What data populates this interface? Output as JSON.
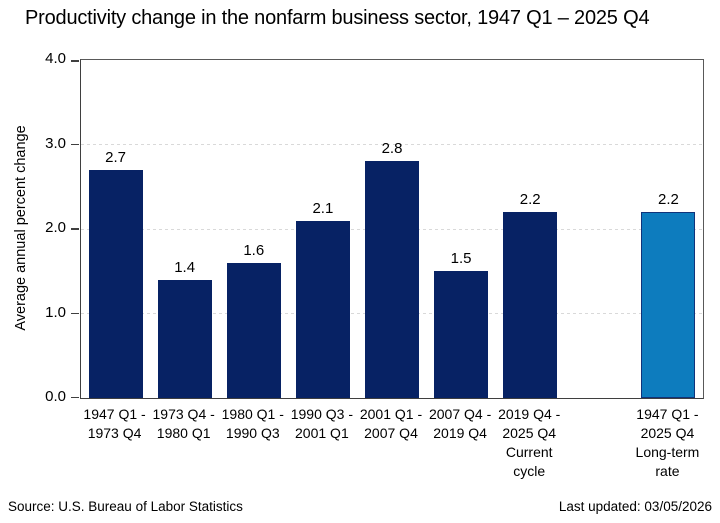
{
  "chart_data": {
    "type": "bar",
    "title": "Productivity change in the nonfarm business sector, 1947 Q1 – 2025 Q4",
    "ylabel": "Average annual percent change",
    "xlabel": "",
    "ylim": [
      0,
      4
    ],
    "ytick_values": [
      0,
      1,
      2,
      3,
      4
    ],
    "ytick_labels": [
      "0.0",
      "1.0",
      "2.0",
      "3.0",
      "4.0"
    ],
    "grid": "horizontal dashed gridlines at interior ticks",
    "legend_position": "none",
    "axis_color": "#3f3f3f",
    "border_color": "#595959",
    "gridline_color": "#d9d9d9",
    "bars": [
      {
        "category_lines": [
          "1947 Q1 -",
          "1973 Q4"
        ],
        "value": 2.7,
        "value_label": "2.7",
        "color": "#072264"
      },
      {
        "category_lines": [
          "1973 Q4 -",
          "1980 Q1"
        ],
        "value": 1.4,
        "value_label": "1.4",
        "color": "#072264"
      },
      {
        "category_lines": [
          "1980 Q1 -",
          "1990 Q3"
        ],
        "value": 1.6,
        "value_label": "1.6",
        "color": "#072264"
      },
      {
        "category_lines": [
          "1990 Q3 -",
          "2001 Q1"
        ],
        "value": 2.1,
        "value_label": "2.1",
        "color": "#072264"
      },
      {
        "category_lines": [
          "2001 Q1 -",
          "2007 Q4"
        ],
        "value": 2.8,
        "value_label": "2.8",
        "color": "#072264"
      },
      {
        "category_lines": [
          "2007 Q4 -",
          "2019 Q4"
        ],
        "value": 1.5,
        "value_label": "1.5",
        "color": "#072264"
      },
      {
        "category_lines": [
          "2019 Q4 -",
          "2025 Q4",
          "Current",
          "cycle"
        ],
        "value": 2.2,
        "value_label": "2.2",
        "color": "#072264"
      },
      {
        "category_lines": [
          "1947 Q1 -",
          "2025 Q4",
          "Long-term",
          "rate"
        ],
        "value": 2.2,
        "value_label": "2.2",
        "color": "#0d7cbe",
        "border_color": "#10337a",
        "separated_gap_before": true
      }
    ]
  },
  "footer": {
    "source": "Source: U.S. Bureau of Labor Statistics",
    "last_updated": "Last updated: 03/05/2026"
  }
}
